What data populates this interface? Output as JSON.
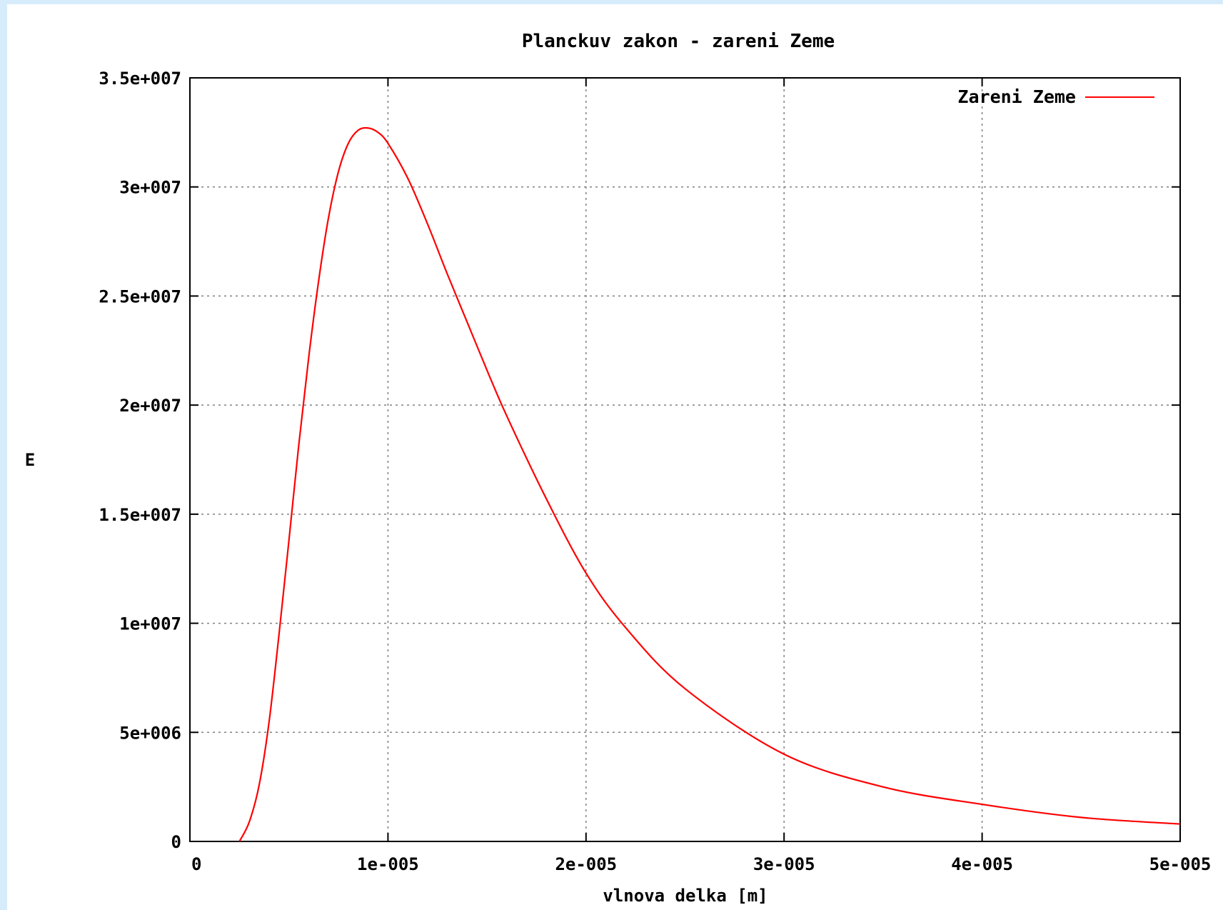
{
  "chart_data": {
    "type": "line",
    "title": "Planckuv zakon - zareni Zeme",
    "xlabel": "vlnova delka [m]",
    "ylabel": "E",
    "xlim": [
      0,
      5e-05
    ],
    "ylim": [
      0,
      35000000
    ],
    "x_ticks": [
      0,
      1e-05,
      2e-05,
      3e-05,
      4e-05,
      5e-05
    ],
    "x_tick_labels": [
      "0",
      "1e-005",
      "2e-005",
      "3e-005",
      "4e-005",
      "5e-005"
    ],
    "y_ticks": [
      0,
      5000000,
      10000000,
      15000000,
      20000000,
      25000000,
      30000000,
      35000000
    ],
    "y_tick_labels": [
      "0",
      "5e+006",
      "1e+007",
      "1.5e+007",
      "2e+007",
      "2.5e+007",
      "3e+007",
      "3.5e+007"
    ],
    "grid": true,
    "legend": "top-right",
    "series": [
      {
        "name": "Zareni Zeme",
        "color": "#ff0000",
        "x": [
          2.5e-06,
          3e-06,
          3.5e-06,
          4e-06,
          4.5e-06,
          5e-06,
          5.5e-06,
          6e-06,
          6.5e-06,
          7e-06,
          7.5e-06,
          8e-06,
          8.5e-06,
          9e-06,
          9.5e-06,
          1e-05,
          1.1e-05,
          1.2e-05,
          1.3e-05,
          1.4e-05,
          1.5e-05,
          1.6e-05,
          1.8e-05,
          2e-05,
          2.2e-05,
          2.5e-05,
          3e-05,
          3.5e-05,
          4e-05,
          4.5e-05,
          5e-05
        ],
        "y": [
          0,
          900000,
          2600000,
          5500000,
          9500000,
          13800000,
          18200000,
          22200000,
          25700000,
          28600000,
          30700000,
          32000000,
          32600000,
          32700000,
          32500000,
          32000000,
          30400000,
          28300000,
          26000000,
          23800000,
          21600000,
          19500000,
          15700000,
          12300000,
          9800000,
          7000000,
          4000000,
          2500000,
          1700000,
          1100000,
          800000
        ]
      }
    ]
  }
}
